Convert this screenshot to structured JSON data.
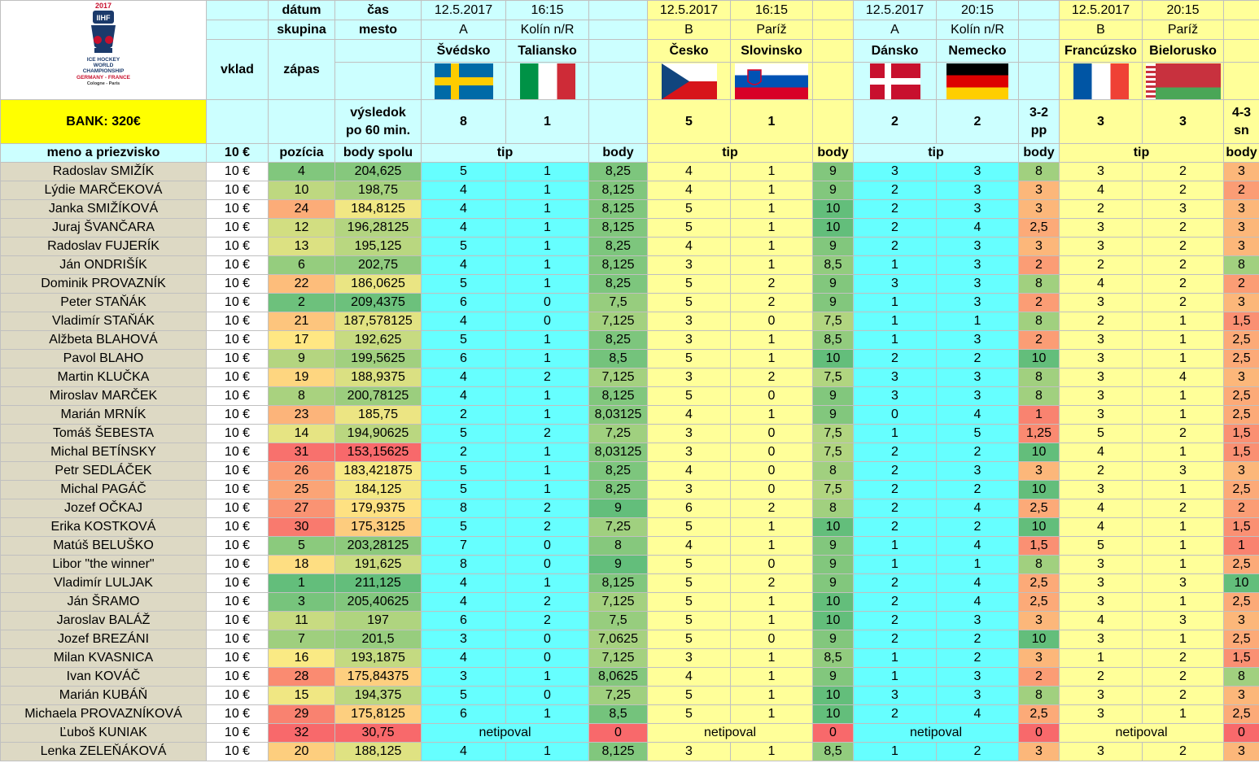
{
  "bank_label": "BANK: 320€",
  "logo": {
    "year": "2017",
    "abbr": "IIHF",
    "line1": "ICE HOCKEY",
    "line2": "WORLD",
    "line3": "CHAMPIONSHIP",
    "line4": "GERMANY - FRANCE",
    "line5": "Cologne - Paris"
  },
  "labels": {
    "datum": "dátum",
    "cas": "čas",
    "skupina": "skupina",
    "mesto": "mesto",
    "vklad": "vklad",
    "zapas": "zápas",
    "vysledok1": "výsledok",
    "vysledok2": "po 60 min.",
    "meno": "meno a priezvisko",
    "vklad_amount": "10 €",
    "pozicia": "pozícia",
    "body_spolu": "body spolu",
    "tip": "tip",
    "body": "body",
    "netipoval": "netipoval"
  },
  "matches": [
    {
      "date": "12.5.2017",
      "time": "16:15",
      "group": "A",
      "city": "Kolín n/R",
      "home": "Švédsko",
      "away": "Taliansko",
      "home_flag": "sweden-flag",
      "away_flag": "italy-flag",
      "home_score": "8",
      "away_score": "1",
      "note1": "",
      "note2": ""
    },
    {
      "date": "12.5.2017",
      "time": "16:15",
      "group": "B",
      "city": "Paríž",
      "home": "Česko",
      "away": "Slovinsko",
      "home_flag": "czech-flag",
      "away_flag": "slovenia-flag",
      "home_score": "5",
      "away_score": "1",
      "note1": "",
      "note2": ""
    },
    {
      "date": "12.5.2017",
      "time": "20:15",
      "group": "A",
      "city": "Kolín n/R",
      "home": "Dánsko",
      "away": "Nemecko",
      "home_flag": "denmark-flag",
      "away_flag": "germany-flag",
      "home_score": "2",
      "away_score": "2",
      "note1": "3-2",
      "note2": "pp"
    },
    {
      "date": "12.5.2017",
      "time": "20:15",
      "group": "B",
      "city": "Paríž",
      "home": "Francúzsko",
      "away": "Bielorusko",
      "home_flag": "france-flag",
      "away_flag": "belarus-flag",
      "home_score": "3",
      "away_score": "3",
      "note1": "4-3",
      "note2": "sn"
    }
  ],
  "colors": {
    "pos_good": "#63be7b",
    "pos_mid": "#ffeb84",
    "pos_bad": "#f8696b"
  },
  "players": [
    {
      "name": "Radoslav SMIŽÍK",
      "pos": "4",
      "total": "204,625",
      "t": [
        [
          "5",
          "1",
          "8,25"
        ],
        [
          "4",
          "1",
          "9"
        ],
        [
          "3",
          "3",
          "8"
        ],
        [
          "3",
          "2",
          "3"
        ]
      ]
    },
    {
      "name": "Lýdie MARČEKOVÁ",
      "pos": "10",
      "total": "198,75",
      "t": [
        [
          "4",
          "1",
          "8,125"
        ],
        [
          "4",
          "1",
          "9"
        ],
        [
          "2",
          "3",
          "3"
        ],
        [
          "4",
          "2",
          "2"
        ]
      ]
    },
    {
      "name": "Janka SMIŽÍKOVÁ",
      "pos": "24",
      "total": "184,8125",
      "t": [
        [
          "4",
          "1",
          "8,125"
        ],
        [
          "5",
          "1",
          "10"
        ],
        [
          "2",
          "3",
          "3"
        ],
        [
          "2",
          "3",
          "3"
        ]
      ]
    },
    {
      "name": "Juraj ŠVANČARA",
      "pos": "12",
      "total": "196,28125",
      "t": [
        [
          "4",
          "1",
          "8,125"
        ],
        [
          "5",
          "1",
          "10"
        ],
        [
          "2",
          "4",
          "2,5"
        ],
        [
          "3",
          "2",
          "3"
        ]
      ]
    },
    {
      "name": "Radoslav FUJERÍK",
      "pos": "13",
      "total": "195,125",
      "t": [
        [
          "5",
          "1",
          "8,25"
        ],
        [
          "4",
          "1",
          "9"
        ],
        [
          "2",
          "3",
          "3"
        ],
        [
          "3",
          "2",
          "3"
        ]
      ]
    },
    {
      "name": "Ján ONDRIŠÍK",
      "pos": "6",
      "total": "202,75",
      "t": [
        [
          "4",
          "1",
          "8,125"
        ],
        [
          "3",
          "1",
          "8,5"
        ],
        [
          "1",
          "3",
          "2"
        ],
        [
          "2",
          "2",
          "8"
        ]
      ]
    },
    {
      "name": "Dominik PROVAZNÍK",
      "pos": "22",
      "total": "186,0625",
      "t": [
        [
          "5",
          "1",
          "8,25"
        ],
        [
          "5",
          "2",
          "9"
        ],
        [
          "3",
          "3",
          "8"
        ],
        [
          "4",
          "2",
          "2"
        ]
      ]
    },
    {
      "name": "Peter STAŇÁK",
      "pos": "2",
      "total": "209,4375",
      "t": [
        [
          "6",
          "0",
          "7,5"
        ],
        [
          "5",
          "2",
          "9"
        ],
        [
          "1",
          "3",
          "2"
        ],
        [
          "3",
          "2",
          "3"
        ]
      ]
    },
    {
      "name": "Vladimír STAŇÁK",
      "pos": "21",
      "total": "187,578125",
      "t": [
        [
          "4",
          "0",
          "7,125"
        ],
        [
          "3",
          "0",
          "7,5"
        ],
        [
          "1",
          "1",
          "8"
        ],
        [
          "2",
          "1",
          "1,5"
        ]
      ]
    },
    {
      "name": "Alžbeta BLAHOVÁ",
      "pos": "17",
      "total": "192,625",
      "t": [
        [
          "5",
          "1",
          "8,25"
        ],
        [
          "3",
          "1",
          "8,5"
        ],
        [
          "1",
          "3",
          "2"
        ],
        [
          "3",
          "1",
          "2,5"
        ]
      ]
    },
    {
      "name": "Pavol BLAHO",
      "pos": "9",
      "total": "199,5625",
      "t": [
        [
          "6",
          "1",
          "8,5"
        ],
        [
          "5",
          "1",
          "10"
        ],
        [
          "2",
          "2",
          "10"
        ],
        [
          "3",
          "1",
          "2,5"
        ]
      ]
    },
    {
      "name": "Martin KLUČKA",
      "pos": "19",
      "total": "188,9375",
      "t": [
        [
          "4",
          "2",
          "7,125"
        ],
        [
          "3",
          "2",
          "7,5"
        ],
        [
          "3",
          "3",
          "8"
        ],
        [
          "3",
          "4",
          "3"
        ]
      ]
    },
    {
      "name": "Miroslav MARČEK",
      "pos": "8",
      "total": "200,78125",
      "t": [
        [
          "4",
          "1",
          "8,125"
        ],
        [
          "5",
          "0",
          "9"
        ],
        [
          "3",
          "3",
          "8"
        ],
        [
          "3",
          "1",
          "2,5"
        ]
      ]
    },
    {
      "name": "Marián MRNÍK",
      "pos": "23",
      "total": "185,75",
      "t": [
        [
          "2",
          "1",
          "8,03125"
        ],
        [
          "4",
          "1",
          "9"
        ],
        [
          "0",
          "4",
          "1"
        ],
        [
          "3",
          "1",
          "2,5"
        ]
      ]
    },
    {
      "name": "Tomáš ŠEBESTA",
      "pos": "14",
      "total": "194,90625",
      "t": [
        [
          "5",
          "2",
          "7,25"
        ],
        [
          "3",
          "0",
          "7,5"
        ],
        [
          "1",
          "5",
          "1,25"
        ],
        [
          "5",
          "2",
          "1,5"
        ]
      ]
    },
    {
      "name": "Michal BETÍNSKY",
      "pos": "31",
      "total": "153,15625",
      "t": [
        [
          "2",
          "1",
          "8,03125"
        ],
        [
          "3",
          "0",
          "7,5"
        ],
        [
          "2",
          "2",
          "10"
        ],
        [
          "4",
          "1",
          "1,5"
        ]
      ]
    },
    {
      "name": "Petr SEDLÁČEK",
      "pos": "26",
      "total": "183,421875",
      "t": [
        [
          "5",
          "1",
          "8,25"
        ],
        [
          "4",
          "0",
          "8"
        ],
        [
          "2",
          "3",
          "3"
        ],
        [
          "2",
          "3",
          "3"
        ]
      ]
    },
    {
      "name": "Michal PAGÁČ",
      "pos": "25",
      "total": "184,125",
      "t": [
        [
          "5",
          "1",
          "8,25"
        ],
        [
          "3",
          "0",
          "7,5"
        ],
        [
          "2",
          "2",
          "10"
        ],
        [
          "3",
          "1",
          "2,5"
        ]
      ]
    },
    {
      "name": "Jozef OČKAJ",
      "pos": "27",
      "total": "179,9375",
      "t": [
        [
          "8",
          "2",
          "9"
        ],
        [
          "6",
          "2",
          "8"
        ],
        [
          "2",
          "4",
          "2,5"
        ],
        [
          "4",
          "2",
          "2"
        ]
      ]
    },
    {
      "name": "Erika KOSTKOVÁ",
      "pos": "30",
      "total": "175,3125",
      "t": [
        [
          "5",
          "2",
          "7,25"
        ],
        [
          "5",
          "1",
          "10"
        ],
        [
          "2",
          "2",
          "10"
        ],
        [
          "4",
          "1",
          "1,5"
        ]
      ]
    },
    {
      "name": "Matúš BELUŠKO",
      "pos": "5",
      "total": "203,28125",
      "t": [
        [
          "7",
          "0",
          "8"
        ],
        [
          "4",
          "1",
          "9"
        ],
        [
          "1",
          "4",
          "1,5"
        ],
        [
          "5",
          "1",
          "1"
        ]
      ]
    },
    {
      "name": "Libor \"the winner\"",
      "pos": "18",
      "total": "191,625",
      "t": [
        [
          "8",
          "0",
          "9"
        ],
        [
          "5",
          "0",
          "9"
        ],
        [
          "1",
          "1",
          "8"
        ],
        [
          "3",
          "1",
          "2,5"
        ]
      ]
    },
    {
      "name": "Vladimír LULJAK",
      "pos": "1",
      "total": "211,125",
      "t": [
        [
          "4",
          "1",
          "8,125"
        ],
        [
          "5",
          "2",
          "9"
        ],
        [
          "2",
          "4",
          "2,5"
        ],
        [
          "3",
          "3",
          "10"
        ]
      ]
    },
    {
      "name": "Ján ŠRAMO",
      "pos": "3",
      "total": "205,40625",
      "t": [
        [
          "4",
          "2",
          "7,125"
        ],
        [
          "5",
          "1",
          "10"
        ],
        [
          "2",
          "4",
          "2,5"
        ],
        [
          "3",
          "1",
          "2,5"
        ]
      ]
    },
    {
      "name": "Jaroslav BALÁŽ",
      "pos": "11",
      "total": "197",
      "t": [
        [
          "6",
          "2",
          "7,5"
        ],
        [
          "5",
          "1",
          "10"
        ],
        [
          "2",
          "3",
          "3"
        ],
        [
          "4",
          "3",
          "3"
        ]
      ]
    },
    {
      "name": "Jozef BREZÁNI",
      "pos": "7",
      "total": "201,5",
      "t": [
        [
          "3",
          "0",
          "7,0625"
        ],
        [
          "5",
          "0",
          "9"
        ],
        [
          "2",
          "2",
          "10"
        ],
        [
          "3",
          "1",
          "2,5"
        ]
      ]
    },
    {
      "name": "Milan KVASNICA",
      "pos": "16",
      "total": "193,1875",
      "t": [
        [
          "4",
          "0",
          "7,125"
        ],
        [
          "3",
          "1",
          "8,5"
        ],
        [
          "1",
          "2",
          "3"
        ],
        [
          "1",
          "2",
          "1,5"
        ]
      ]
    },
    {
      "name": "Ivan KOVÁČ",
      "pos": "28",
      "total": "175,84375",
      "t": [
        [
          "3",
          "1",
          "8,0625"
        ],
        [
          "4",
          "1",
          "9"
        ],
        [
          "1",
          "3",
          "2"
        ],
        [
          "2",
          "2",
          "8"
        ]
      ]
    },
    {
      "name": "Marián KUBÁŇ",
      "pos": "15",
      "total": "194,375",
      "t": [
        [
          "5",
          "0",
          "7,25"
        ],
        [
          "5",
          "1",
          "10"
        ],
        [
          "3",
          "3",
          "8"
        ],
        [
          "3",
          "2",
          "3"
        ]
      ]
    },
    {
      "name": "Michaela PROVAZNÍKOVÁ",
      "pos": "29",
      "total": "175,8125",
      "t": [
        [
          "6",
          "1",
          "8,5"
        ],
        [
          "5",
          "1",
          "10"
        ],
        [
          "2",
          "4",
          "2,5"
        ],
        [
          "3",
          "1",
          "2,5"
        ]
      ]
    },
    {
      "name": "Ľuboš KUNIAK",
      "pos": "32",
      "total": "30,75",
      "t": [
        [
          "netipoval",
          "",
          "0"
        ],
        [
          "netipoval",
          "",
          "0"
        ],
        [
          "netipoval",
          "",
          "0"
        ],
        [
          "netipoval",
          "",
          "0"
        ]
      ]
    },
    {
      "name": "Lenka ZELEŇÁKOVÁ",
      "pos": "20",
      "total": "188,125",
      "t": [
        [
          "4",
          "1",
          "8,125"
        ],
        [
          "3",
          "1",
          "8,5"
        ],
        [
          "1",
          "2",
          "3"
        ],
        [
          "3",
          "2",
          "3"
        ]
      ]
    }
  ]
}
